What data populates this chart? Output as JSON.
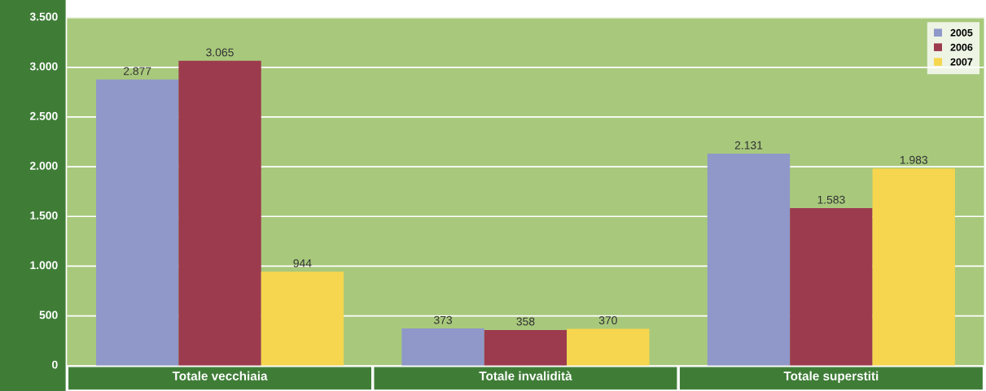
{
  "chart_data": {
    "type": "bar",
    "categories": [
      "Totale vecchiaia",
      "Totale invalidità",
      "Totale superstiti"
    ],
    "series": [
      {
        "name": "2005",
        "color": "#8f98c9",
        "values": [
          2877,
          373,
          2131
        ],
        "value_labels": [
          "2.877",
          "373",
          "2.131"
        ]
      },
      {
        "name": "2006",
        "color": "#9c3b4e",
        "values": [
          3065,
          358,
          1583
        ],
        "value_labels": [
          "3.065",
          "358",
          "1.583"
        ]
      },
      {
        "name": "2007",
        "color": "#f6d64e",
        "values": [
          944,
          370,
          1983
        ],
        "value_labels": [
          "944",
          "370",
          "1.983"
        ]
      }
    ],
    "ylim": [
      0,
      3500
    ],
    "yticks": [
      0,
      500,
      {
        "value": 1000,
        "label": "1.000"
      },
      {
        "value": 1500,
        "label": "1.500"
      },
      {
        "value": 2000,
        "label": "2.000"
      },
      {
        "value": 2500,
        "label": "2.500"
      },
      {
        "value": 3000,
        "label": "3.000"
      },
      {
        "value": 3500,
        "label": "3.500"
      }
    ],
    "grid": "y",
    "legend": "top right"
  }
}
